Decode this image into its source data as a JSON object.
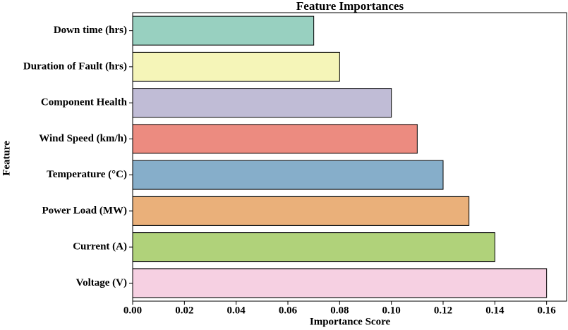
{
  "chart_data": {
    "type": "barh",
    "title": "Feature Importances",
    "x_label": "Importance Score",
    "y_label": "Feature",
    "categories": [
      "Down time (hrs)",
      "Duration of Fault (hrs)",
      "Component Health",
      "Wind Speed (km/h)",
      "Temperature (°C)",
      "Power Load (MW)",
      "Current (A)",
      "Voltage (V)"
    ],
    "values": [
      0.07,
      0.08,
      0.1,
      0.11,
      0.12,
      0.13,
      0.14,
      0.16
    ],
    "colors": [
      "#98d0c0",
      "#f5f5b8",
      "#c0bcd6",
      "#ec8b80",
      "#86aeca",
      "#eab07a",
      "#b0d27a",
      "#f6d0e2"
    ],
    "xlim": [
      0,
      0.168
    ],
    "xticks": [
      {
        "value": 0,
        "label": "0.00"
      },
      {
        "value": 0.02,
        "label": "0.02"
      },
      {
        "value": 0.04,
        "label": "0.04"
      },
      {
        "value": 0.06,
        "label": "0.06"
      },
      {
        "value": 0.08,
        "label": "0.08"
      },
      {
        "value": 0.1,
        "label": "0.10"
      },
      {
        "value": 0.12,
        "label": "0.12"
      },
      {
        "value": 0.14,
        "label": "0.14"
      },
      {
        "value": 0.16,
        "label": "0.16"
      }
    ]
  }
}
